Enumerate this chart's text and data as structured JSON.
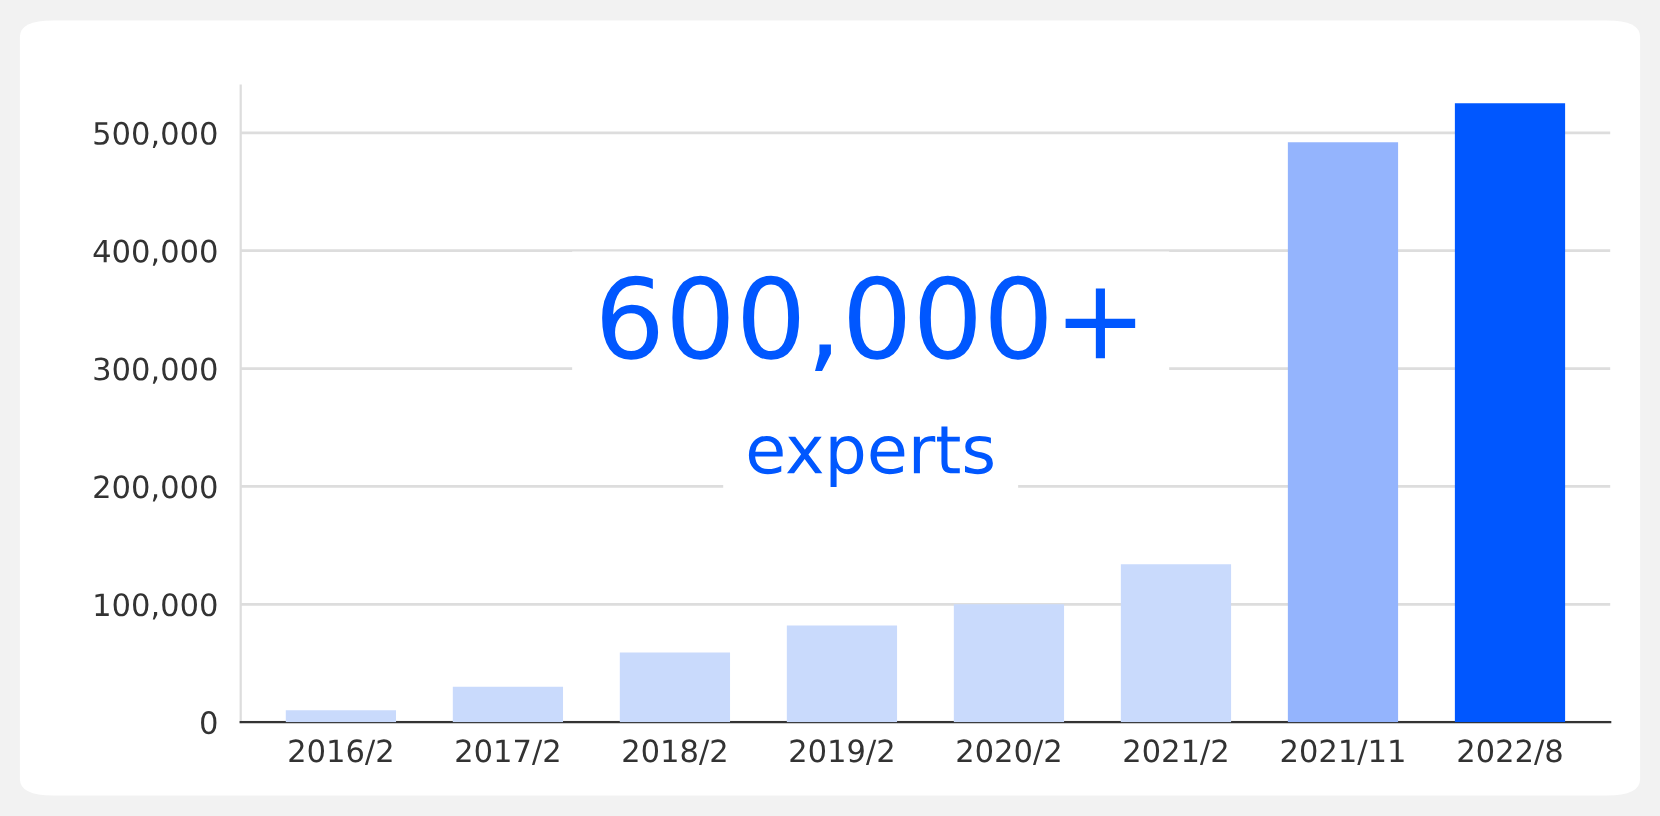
{
  "chart_data": {
    "type": "bar",
    "categories": [
      "2016/2",
      "2017/2",
      "2018/2",
      "2019/2",
      "2020/2",
      "2021/2",
      "2021/11",
      "2022/8"
    ],
    "values": [
      10000,
      30000,
      59000,
      82000,
      100000,
      134000,
      492000,
      525000
    ],
    "colors": [
      "#c9dafc",
      "#c9dafc",
      "#c9dafc",
      "#c9dafc",
      "#c9dafc",
      "#c9dafc",
      "#94b4fd",
      "#0057ff"
    ],
    "ylim": [
      0,
      540000
    ],
    "yticks": [
      0,
      {
        "value": 100000,
        "label": "100,000"
      },
      {
        "value": 200000,
        "label": "200,000"
      },
      {
        "value": 300000,
        "label": "300,000"
      },
      {
        "value": 400000,
        "label": "400,000"
      },
      {
        "value": 500000,
        "label": "500,000"
      }
    ],
    "grid": "y",
    "annotations": [
      "600,000+",
      "experts"
    ]
  }
}
